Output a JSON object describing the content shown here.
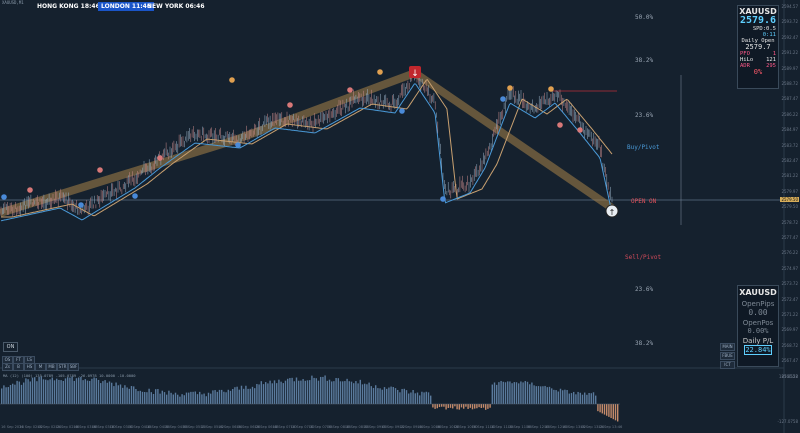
{
  "header": {
    "symbol_label": "XAUUSD,M1"
  },
  "sessions": [
    {
      "name": "HONG KONG 18:46",
      "color": "#c0272d"
    },
    {
      "name": "LONDON 11:46",
      "color": "#1a55c8"
    },
    {
      "name": "NEW YORK 06:46",
      "color": "#c0272d"
    }
  ],
  "fib_levels": [
    "50.0%",
    "38.2%",
    "23.6%",
    "23.6%",
    "38.2%"
  ],
  "pivots": {
    "buy": "Buy/Pivot",
    "sell": "Sell/Pivot",
    "open": "OPEN ON"
  },
  "info_panel": {
    "symbol": "XAUUSD",
    "price": "2579.6",
    "spread": "SPD:0.5",
    "timer": "0:11",
    "daily_open_label": "Daily Open",
    "daily_open": "2579.7",
    "pfo_label": "PFO",
    "pfo": "1",
    "hilo_label": "HiLo",
    "hilo": "121",
    "adr_label": "ADR",
    "adr": "295",
    "pct": "0%"
  },
  "pl_panel": {
    "symbol": "XAUUSD",
    "open_pips_label": "OpenPips",
    "open_pips": "0.00",
    "open_pos_label": "OpenPos",
    "open_pos": "0.00%",
    "daily_pl_label": "Daily P/L",
    "daily_pl": "22.84%"
  },
  "panel_buttons": [
    "MAIN",
    "FBUE",
    "ICT"
  ],
  "on_button": "ON",
  "toolbar": [
    "OS",
    "FT",
    "LS",
    "Zs",
    "B",
    "HS",
    "M",
    "MB",
    "STR",
    "SBF"
  ],
  "indicator_label": "MA (12) (100) 135.0789 -105.0789 -26.0978 10.0000 -10.0000",
  "price_axis": [
    "2594.57",
    "2593.72",
    "2592.47",
    "2591.22",
    "2589.97",
    "2588.72",
    "2587.47",
    "2586.22",
    "2584.97",
    "2583.72",
    "2582.47",
    "2581.22",
    "2579.97",
    "2579.50",
    "2578.72",
    "2577.47",
    "2576.22",
    "2574.97",
    "2573.72",
    "2572.47",
    "2571.22",
    "2569.97",
    "2568.72",
    "2567.47",
    "2566.22"
  ],
  "price_current": "2579.50",
  "indicator_axis": [
    "187.0558",
    "-127.0758"
  ],
  "time_axis": [
    "16 Sep 2024",
    "16 Sep 02:02",
    "16 Sep 02:24",
    "16 Sep 02:46",
    "16 Sep 03:08",
    "16 Sep 03:30",
    "16 Sep 03:52",
    "16 Sep 04:14",
    "16 Sep 04:36",
    "16 Sep 04:58",
    "16 Sep 05:20",
    "16 Sep 05:42",
    "16 Sep 06:04",
    "16 Sep 06:26",
    "16 Sep 06:48",
    "16 Sep 07:10",
    "16 Sep 07:32",
    "16 Sep 07:54",
    "16 Sep 08:16",
    "16 Sep 08:38",
    "16 Sep 09:00",
    "16 Sep 09:22",
    "16 Sep 09:44",
    "16 Sep 10:06",
    "16 Sep 10:28",
    "16 Sep 10:50",
    "16 Sep 11:12",
    "16 Sep 11:34",
    "16 Sep 11:56",
    "16 Sep 12:18",
    "16 Sep 12:40",
    "16 Sep 13:02",
    "16 Sep 13:24",
    "16 Sep 13:46"
  ],
  "colors": {
    "bg": "#15212e",
    "accent": "#3a8fd8",
    "price": "#5fd0ff",
    "warning": "#ff5a6a",
    "gold": "#d6ad5a"
  }
}
